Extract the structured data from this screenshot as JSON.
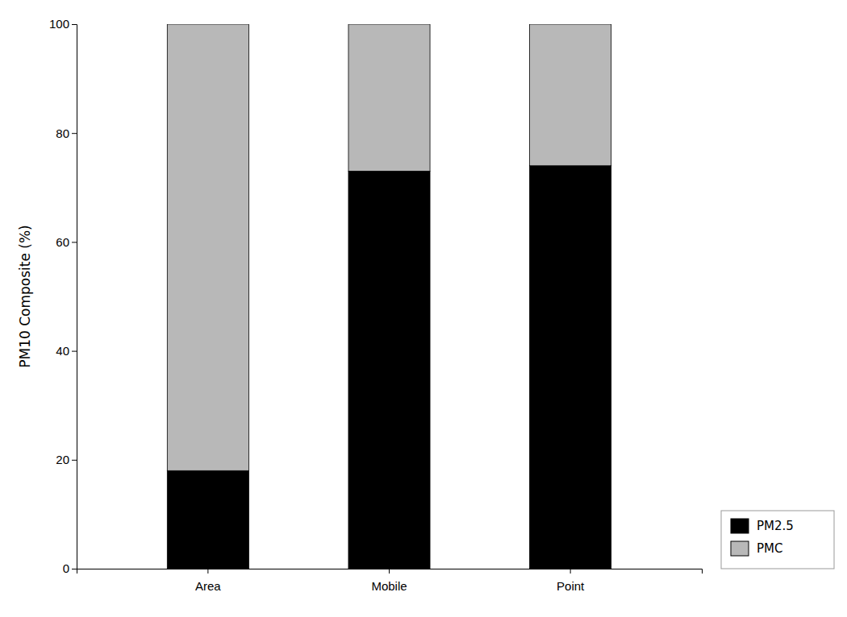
{
  "chart_data": {
    "type": "bar",
    "stacked": true,
    "categories": [
      "Area",
      "Mobile",
      "Point"
    ],
    "series": [
      {
        "name": "PM2.5",
        "color": "#000000",
        "values": [
          18,
          73,
          74
        ]
      },
      {
        "name": "PMC",
        "color": "#b8b8b8",
        "values": [
          82,
          27,
          26
        ]
      }
    ],
    "ylabel": "PM10 Composite (%)",
    "ylim": [
      0,
      100
    ],
    "yticks": [
      0,
      20,
      40,
      60,
      80,
      100
    ],
    "grid": false,
    "legend": "lower right"
  }
}
